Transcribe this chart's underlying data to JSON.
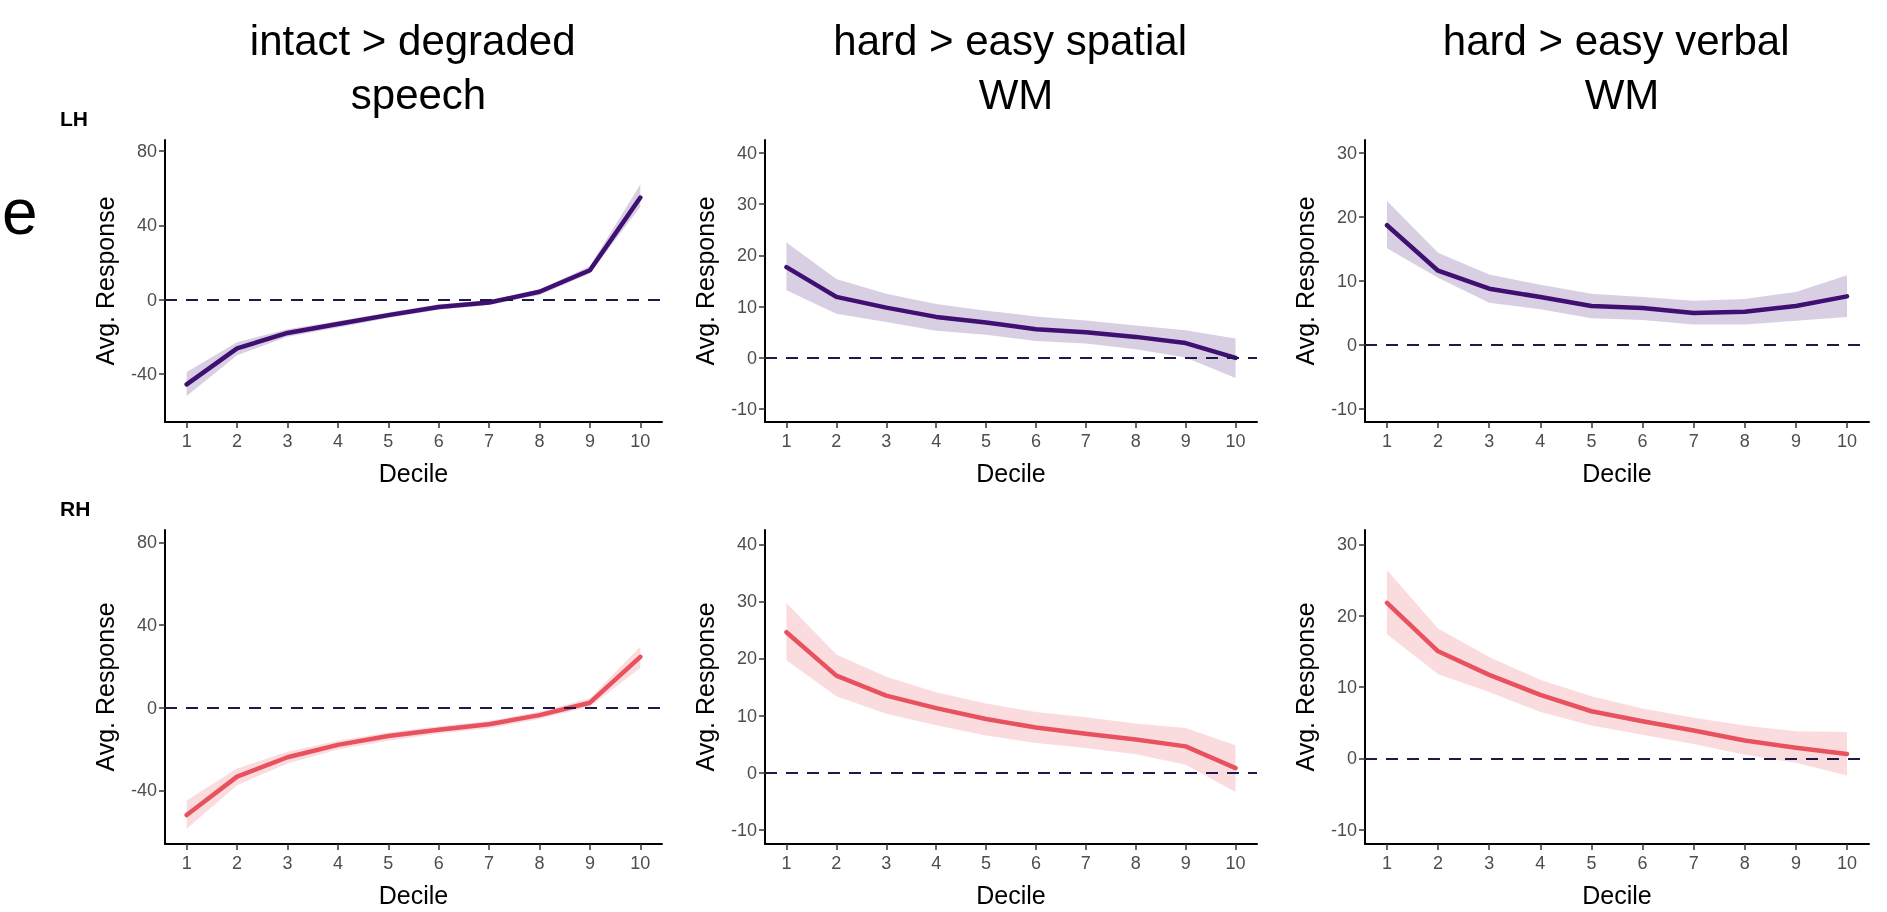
{
  "chart_data": [
    {
      "type": "line",
      "title": "intact > degraded speech",
      "subtitle": "LH",
      "annotations": [
        "e"
      ],
      "xlabel": "Decile",
      "ylabel": "Avg. Response",
      "x": [
        1,
        2,
        3,
        4,
        5,
        6,
        7,
        8,
        9,
        10
      ],
      "xlim": [
        0.57,
        10.43
      ],
      "xticks": [
        1,
        2,
        3,
        4,
        5,
        6,
        7,
        8,
        9,
        10
      ],
      "ylim": [
        -66,
        86
      ],
      "yticks": [
        -40,
        0,
        40,
        80
      ],
      "grid": false,
      "ref_lines": [
        {
          "axis": "y",
          "value": 0,
          "color": "#1c1a4a",
          "line_style": "dashed"
        }
      ],
      "series": [
        {
          "color": "#3f0f72",
          "values": [
            -45.7,
            -26.3,
            -18,
            -13.2,
            -8.4,
            -4,
            -1.6,
            4.2,
            15.8,
            55
          ],
          "lower": [
            -52,
            -30,
            -20,
            -15,
            -10,
            -5.5,
            -3,
            2.5,
            14,
            50
          ],
          "upper": [
            -39,
            -23,
            -16,
            -11.5,
            -7,
            -2.5,
            -0.5,
            5.5,
            18,
            62
          ]
        }
      ]
    },
    {
      "type": "line",
      "title": "hard > easy spatial WM",
      "xlabel": "Decile",
      "ylabel": "Avg. Response",
      "x": [
        1,
        2,
        3,
        4,
        5,
        6,
        7,
        8,
        9,
        10
      ],
      "xlim": [
        0.57,
        10.43
      ],
      "xticks": [
        1,
        2,
        3,
        4,
        5,
        6,
        7,
        8,
        9,
        10
      ],
      "ylim": [
        -12.5,
        42.5
      ],
      "yticks": [
        -10,
        0,
        10,
        20,
        30,
        40
      ],
      "grid": false,
      "ref_lines": [
        {
          "axis": "y",
          "value": 0,
          "color": "#1c1a4a",
          "line_style": "dashed"
        }
      ],
      "series": [
        {
          "color": "#3f0f72",
          "values": [
            17.7,
            11.9,
            9.8,
            8,
            6.9,
            5.6,
            5,
            4.1,
            2.9,
            0
          ],
          "lower": [
            13.2,
            8.6,
            7,
            5.3,
            4.5,
            3.3,
            2.8,
            1.7,
            0.1,
            -3.9
          ],
          "upper": [
            22.5,
            15.4,
            12.5,
            10.5,
            9.2,
            8.1,
            7.3,
            6.3,
            5.4,
            3.8
          ]
        }
      ]
    },
    {
      "type": "line",
      "title": "hard > easy verbal WM",
      "xlabel": "Decile",
      "ylabel": "Avg. Response",
      "x": [
        1,
        2,
        3,
        4,
        5,
        6,
        7,
        8,
        9,
        10
      ],
      "xlim": [
        0.57,
        10.43
      ],
      "xticks": [
        1,
        2,
        3,
        4,
        5,
        6,
        7,
        8,
        9,
        10
      ],
      "ylim": [
        -12,
        32
      ],
      "yticks": [
        -10,
        0,
        10,
        20,
        30
      ],
      "grid": false,
      "ref_lines": [
        {
          "axis": "y",
          "value": 0,
          "color": "#1c1a4a",
          "line_style": "dashed"
        }
      ],
      "series": [
        {
          "color": "#3f0f72",
          "values": [
            18.7,
            11.6,
            8.8,
            7.5,
            6.1,
            5.8,
            5,
            5.2,
            6.1,
            7.6
          ],
          "lower": [
            15.1,
            10.5,
            6.6,
            5.6,
            4.2,
            3.9,
            3.2,
            3.2,
            3.8,
            4.4
          ],
          "upper": [
            22.5,
            14.4,
            11,
            9.4,
            8,
            7.5,
            6.9,
            7.2,
            8.3,
            10.9
          ]
        }
      ]
    },
    {
      "type": "line",
      "subtitle": "RH",
      "xlabel": "Decile",
      "ylabel": "Avg. Response",
      "x": [
        1,
        2,
        3,
        4,
        5,
        6,
        7,
        8,
        9,
        10
      ],
      "xlim": [
        0.57,
        10.43
      ],
      "xticks": [
        1,
        2,
        3,
        4,
        5,
        6,
        7,
        8,
        9,
        10
      ],
      "ylim": [
        -66,
        86
      ],
      "yticks": [
        -40,
        0,
        40,
        80
      ],
      "grid": false,
      "ref_lines": [
        {
          "axis": "y",
          "value": 0,
          "color": "#1c1a4a",
          "line_style": "dashed"
        }
      ],
      "series": [
        {
          "color": "#e8525f",
          "values": [
            -52,
            -33.4,
            -24,
            -18,
            -13.7,
            -10.7,
            -8,
            -3.6,
            2.4,
            24.6
          ],
          "lower": [
            -58.6,
            -37.5,
            -27,
            -20.3,
            -16,
            -12.5,
            -10,
            -5.5,
            0.5,
            19.3
          ],
          "upper": [
            -45,
            -29.4,
            -21.4,
            -16,
            -12,
            -9,
            -6.5,
            -2,
            4.5,
            29.6
          ]
        }
      ]
    },
    {
      "type": "line",
      "xlabel": "Decile",
      "ylabel": "Avg. Response",
      "x": [
        1,
        2,
        3,
        4,
        5,
        6,
        7,
        8,
        9,
        10
      ],
      "xlim": [
        0.57,
        10.43
      ],
      "xticks": [
        1,
        2,
        3,
        4,
        5,
        6,
        7,
        8,
        9,
        10
      ],
      "ylim": [
        -12.5,
        42.5
      ],
      "yticks": [
        -10,
        0,
        10,
        20,
        30,
        40
      ],
      "grid": false,
      "ref_lines": [
        {
          "axis": "y",
          "value": 0,
          "color": "#1c1a4a",
          "line_style": "dashed"
        }
      ],
      "series": [
        {
          "color": "#e8525f",
          "values": [
            24.6,
            17,
            13.5,
            11.3,
            9.4,
            7.9,
            6.8,
            5.8,
            4.6,
            0.8
          ],
          "lower": [
            19.7,
            13.4,
            10.3,
            8.3,
            6.5,
            5.2,
            4.3,
            3.2,
            1.4,
            -3.4
          ],
          "upper": [
            29.7,
            20.7,
            16.8,
            14.1,
            12.1,
            10.6,
            9.7,
            8.6,
            7.8,
            4.8
          ]
        }
      ]
    },
    {
      "type": "line",
      "xlabel": "Decile",
      "ylabel": "Avg. Response",
      "x": [
        1,
        2,
        3,
        4,
        5,
        6,
        7,
        8,
        9,
        10
      ],
      "xlim": [
        0.57,
        10.43
      ],
      "xticks": [
        1,
        2,
        3,
        4,
        5,
        6,
        7,
        8,
        9,
        10
      ],
      "ylim": [
        -12,
        32
      ],
      "yticks": [
        -10,
        0,
        10,
        20,
        30
      ],
      "grid": false,
      "ref_lines": [
        {
          "axis": "y",
          "value": 0,
          "color": "#1c1a4a",
          "line_style": "dashed"
        }
      ],
      "series": [
        {
          "color": "#e8525f",
          "values": [
            21.8,
            15,
            11.7,
            8.9,
            6.6,
            5.2,
            3.9,
            2.5,
            1.5,
            0.6
          ],
          "lower": [
            17.4,
            11.8,
            9.3,
            6.5,
            4.6,
            3.3,
            2,
            0.5,
            -0.6,
            -2.4
          ],
          "upper": [
            26.4,
            18.2,
            14.2,
            11,
            8.7,
            7,
            5.7,
            4.6,
            3.8,
            3.7
          ]
        }
      ]
    }
  ]
}
